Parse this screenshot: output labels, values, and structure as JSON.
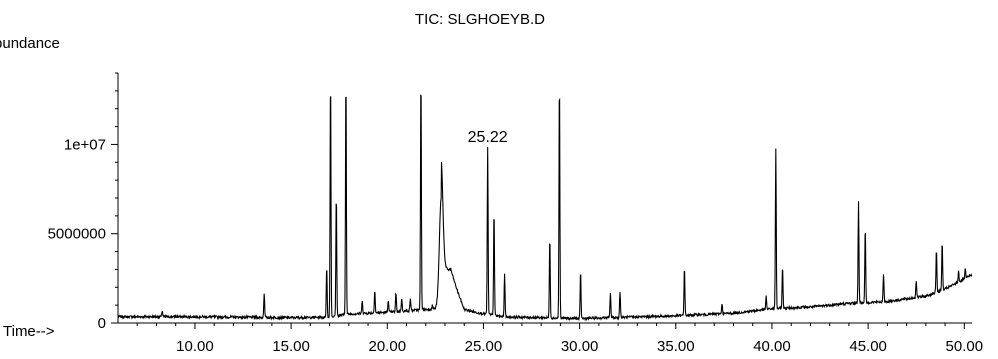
{
  "chart_data": {
    "type": "line",
    "title": "TIC: SLGHOEYB.D",
    "ylabel": "Abundance",
    "xlabel": "Time-->",
    "xlim": [
      6.0,
      50.4
    ],
    "ylim": [
      0,
      14000000
    ],
    "x_ticks": [
      10,
      15,
      20,
      25,
      30,
      35,
      40,
      45,
      50
    ],
    "x_tick_labels": [
      "10.00",
      "15.00",
      "20.00",
      "25.00",
      "30.00",
      "35.00",
      "40.00",
      "45.00",
      "50.00"
    ],
    "y_ticks": [
      0,
      5000000,
      10000000
    ],
    "y_tick_labels": [
      "0",
      "5000000",
      "1e+07"
    ],
    "annotations": [
      {
        "text": "25.22",
        "x": 25.22,
        "y": 9800000
      }
    ],
    "baseline": [
      [
        6.0,
        350000
      ],
      [
        10.0,
        350000
      ],
      [
        15.0,
        300000
      ],
      [
        16.9,
        320000
      ],
      [
        18.0,
        500000
      ],
      [
        20.0,
        600000
      ],
      [
        22.5,
        800000
      ],
      [
        23.3,
        2500000
      ],
      [
        24.0,
        700000
      ],
      [
        26.0,
        350000
      ],
      [
        30.0,
        250000
      ],
      [
        35.0,
        400000
      ],
      [
        38.0,
        550000
      ],
      [
        40.0,
        800000
      ],
      [
        42.0,
        900000
      ],
      [
        44.0,
        1100000
      ],
      [
        46.0,
        1200000
      ],
      [
        48.0,
        1500000
      ],
      [
        49.0,
        1900000
      ],
      [
        50.4,
        2700000
      ]
    ],
    "peaks": [
      {
        "rt": 8.3,
        "abundance": 700000
      },
      {
        "rt": 13.6,
        "abundance": 1700000
      },
      {
        "rt": 16.85,
        "abundance": 3200000
      },
      {
        "rt": 17.05,
        "abundance": 14000000
      },
      {
        "rt": 17.35,
        "abundance": 7300000
      },
      {
        "rt": 17.85,
        "abundance": 14000000
      },
      {
        "rt": 18.7,
        "abundance": 1300000
      },
      {
        "rt": 19.35,
        "abundance": 1900000
      },
      {
        "rt": 20.05,
        "abundance": 1300000
      },
      {
        "rt": 20.45,
        "abundance": 1700000
      },
      {
        "rt": 20.75,
        "abundance": 1400000
      },
      {
        "rt": 21.2,
        "abundance": 1400000
      },
      {
        "rt": 21.75,
        "abundance": 14000000
      },
      {
        "rt": 22.35,
        "abundance": 1000000
      },
      {
        "rt": 22.8,
        "abundance": 7000000
      },
      {
        "rt": 25.22,
        "abundance": 9800000
      },
      {
        "rt": 25.55,
        "abundance": 6400000
      },
      {
        "rt": 26.1,
        "abundance": 2800000
      },
      {
        "rt": 28.45,
        "abundance": 4900000
      },
      {
        "rt": 28.95,
        "abundance": 13800000
      },
      {
        "rt": 30.05,
        "abundance": 2900000
      },
      {
        "rt": 31.6,
        "abundance": 1700000
      },
      {
        "rt": 32.1,
        "abundance": 1800000
      },
      {
        "rt": 35.45,
        "abundance": 3200000
      },
      {
        "rt": 37.4,
        "abundance": 1100000
      },
      {
        "rt": 39.7,
        "abundance": 1500000
      },
      {
        "rt": 40.2,
        "abundance": 9800000
      },
      {
        "rt": 40.55,
        "abundance": 3200000
      },
      {
        "rt": 44.5,
        "abundance": 6800000
      },
      {
        "rt": 44.85,
        "abundance": 5400000
      },
      {
        "rt": 45.8,
        "abundance": 2700000
      },
      {
        "rt": 47.5,
        "abundance": 2400000
      },
      {
        "rt": 48.55,
        "abundance": 4200000
      },
      {
        "rt": 48.85,
        "abundance": 4600000
      },
      {
        "rt": 49.7,
        "abundance": 2900000
      },
      {
        "rt": 50.05,
        "abundance": 3000000
      }
    ]
  }
}
